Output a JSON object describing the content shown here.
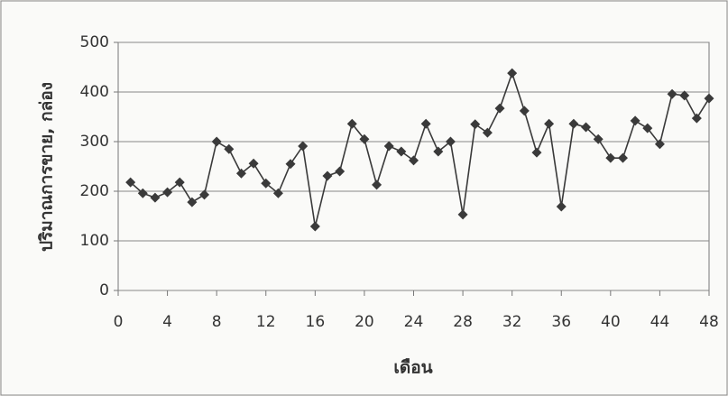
{
  "chart_data": {
    "type": "line",
    "x_label": "เดือน",
    "y_label": "ปริมาณการขาย, กล่อง",
    "x": [
      1,
      2,
      3,
      4,
      5,
      6,
      7,
      8,
      9,
      10,
      11,
      12,
      13,
      14,
      15,
      16,
      17,
      18,
      19,
      20,
      21,
      22,
      23,
      24,
      25,
      26,
      27,
      28,
      29,
      30,
      31,
      32,
      33,
      34,
      35,
      36,
      37,
      38,
      39,
      40,
      41,
      42,
      43,
      44,
      45,
      46,
      47,
      48
    ],
    "series": [
      {
        "color": "#3a3a3a",
        "values": [
          218,
          196,
          187,
          198,
          218,
          178,
          193,
          300,
          285,
          236,
          256,
          216,
          196,
          255,
          291,
          129,
          231,
          240,
          336,
          305,
          213,
          291,
          280,
          262,
          336,
          280,
          300,
          153,
          335,
          318,
          367,
          438,
          362,
          278,
          336,
          169,
          336,
          329,
          305,
          267,
          267,
          342,
          327,
          295,
          396,
          393,
          347,
          387
        ]
      }
    ],
    "xlim": [
      0,
      48
    ],
    "xticks": [
      0,
      4,
      8,
      12,
      16,
      20,
      24,
      28,
      32,
      36,
      40,
      44,
      48
    ],
    "ylim": [
      0,
      500
    ],
    "yticks": [
      0,
      100,
      200,
      300,
      400,
      500
    ],
    "grid": true
  }
}
